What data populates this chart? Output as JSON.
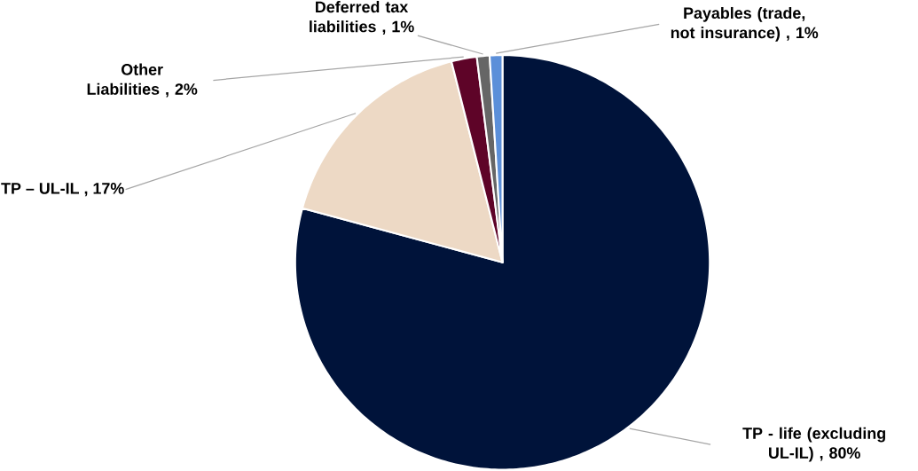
{
  "chart_data": {
    "type": "pie",
    "categories": [
      "TP - life (excluding UL-IL)",
      "TP – UL-IL",
      "Other Liabilities",
      "Deferred tax liabilities",
      "Payables (trade, not insurance)"
    ],
    "values": [
      80,
      17,
      2,
      1,
      1
    ],
    "colors": [
      "#00133a",
      "#edd9c5",
      "#5e0428",
      "#666666",
      "#5b8fd9"
    ],
    "value_labels": [
      ", 80%",
      ", 17%",
      ", 2%",
      ", 1%",
      ", 1%"
    ]
  }
}
